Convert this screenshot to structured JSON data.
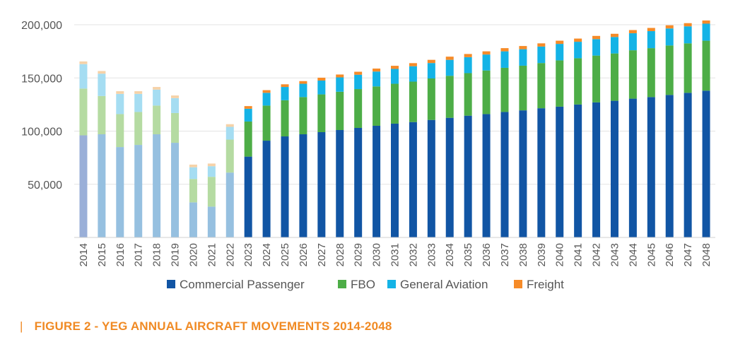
{
  "caption": {
    "marker": "|",
    "text": "FIGURE 2 - YEG ANNUAL AIRCRAFT MOVEMENTS 2014-2048"
  },
  "chart_data": {
    "type": "bar",
    "stacked": true,
    "title": "FIGURE 2 - YEG ANNUAL AIRCRAFT MOVEMENTS 2014-2048",
    "xlabel": "",
    "ylabel": "",
    "ylim": [
      0,
      200000
    ],
    "yticks": [
      50000,
      100000,
      150000,
      200000
    ],
    "ytick_labels": [
      "50,000",
      "100,000",
      "150,000",
      "200,000"
    ],
    "grid": true,
    "legend_position": "bottom",
    "categories": [
      "2014",
      "2015",
      "2016",
      "2017",
      "2018",
      "2019",
      "2020",
      "2021",
      "2022",
      "2023",
      "2024",
      "2025",
      "2026",
      "2027",
      "2028",
      "2029",
      "2030",
      "2031",
      "2032",
      "2033",
      "2034",
      "2035",
      "2036",
      "2037",
      "2038",
      "2039",
      "2040",
      "2041",
      "2042",
      "2043",
      "2044",
      "2045",
      "2046",
      "2047",
      "2048"
    ],
    "historical_through": "2022",
    "series": [
      {
        "name": "Commercial Passenger",
        "color": "#1155A4",
        "historical_color": "#96C0E0",
        "values": [
          96000,
          97000,
          85000,
          87000,
          97000,
          89000,
          33000,
          29000,
          61000,
          76000,
          91000,
          95000,
          97000,
          99000,
          101000,
          103000,
          105000,
          107000,
          108500,
          110500,
          112500,
          114500,
          116000,
          118000,
          119500,
          121500,
          123000,
          125000,
          127000,
          128500,
          130500,
          132000,
          134000,
          136000,
          138000
        ]
      },
      {
        "name": "FBO",
        "color": "#4DAD47",
        "historical_color": "#B5DBA2",
        "values": [
          44000,
          36000,
          31000,
          31000,
          27000,
          28000,
          22000,
          28000,
          31000,
          33000,
          33000,
          34000,
          35000,
          35500,
          36000,
          36500,
          37000,
          37500,
          38000,
          39000,
          39500,
          40000,
          41000,
          41500,
          42000,
          42500,
          43500,
          43500,
          44000,
          44500,
          45500,
          46000,
          46500,
          46500,
          47000
        ]
      },
      {
        "name": "General Aviation",
        "color": "#14B3E6",
        "historical_color": "#A5DDF2",
        "values": [
          23000,
          21000,
          19000,
          17000,
          15000,
          14000,
          11000,
          10000,
          12000,
          12000,
          12000,
          12500,
          12500,
          13000,
          13500,
          13500,
          14000,
          14000,
          14500,
          14500,
          15000,
          15000,
          15000,
          15500,
          15500,
          15500,
          15500,
          15500,
          15500,
          15500,
          16000,
          16000,
          16000,
          16000,
          16000
        ]
      },
      {
        "name": "Freight",
        "color": "#F68B28",
        "historical_color": "#F6D2A8",
        "values": [
          2500,
          2500,
          2500,
          2500,
          2500,
          2500,
          2500,
          2500,
          2500,
          2500,
          2500,
          2500,
          2500,
          2700,
          2700,
          2800,
          2800,
          2900,
          2900,
          3000,
          3000,
          3000,
          3000,
          3000,
          3000,
          3000,
          3000,
          3000,
          3000,
          3000,
          3000,
          3000,
          3000,
          3000,
          3000
        ]
      }
    ]
  }
}
